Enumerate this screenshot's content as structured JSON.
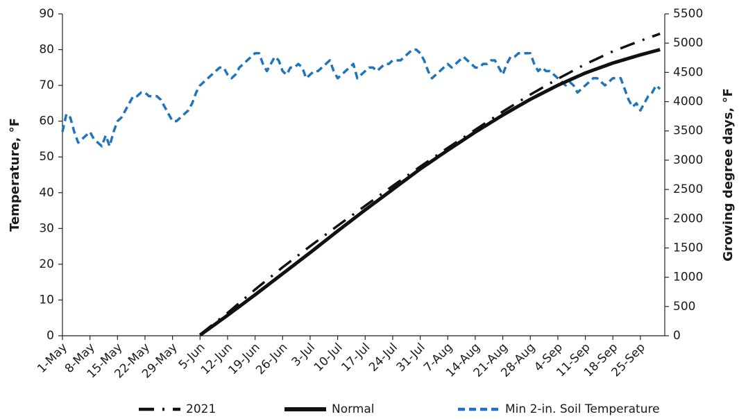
{
  "chart_data": {
    "type": "line",
    "y_label": "Temperature, °F",
    "y2_label": "Growing degree days, °F",
    "categories": [
      "1-May",
      null,
      null,
      null,
      null,
      null,
      null,
      "8-May",
      null,
      null,
      null,
      null,
      null,
      null,
      "15-May",
      null,
      null,
      null,
      null,
      null,
      null,
      "22-May",
      null,
      null,
      null,
      null,
      null,
      null,
      "29-May",
      null,
      null,
      null,
      null,
      null,
      null,
      "5-Jun",
      null,
      null,
      null,
      null,
      null,
      null,
      "12-Jun",
      null,
      null,
      null,
      null,
      null,
      null,
      "19-Jun",
      null,
      null,
      null,
      null,
      null,
      null,
      "26-Jun",
      null,
      null,
      null,
      null,
      null,
      null,
      "3-Jul",
      null,
      null,
      null,
      null,
      null,
      null,
      "10-Jul",
      null,
      null,
      null,
      null,
      null,
      null,
      "17-Jul",
      null,
      null,
      null,
      null,
      null,
      null,
      "24-Jul",
      null,
      null,
      null,
      null,
      null,
      null,
      "31-Jul",
      null,
      null,
      null,
      null,
      null,
      null,
      "7-Aug",
      null,
      null,
      null,
      null,
      null,
      null,
      "14-Aug",
      null,
      null,
      null,
      null,
      null,
      null,
      "21-Aug",
      null,
      null,
      null,
      null,
      null,
      null,
      "28-Aug",
      null,
      null,
      null,
      null,
      null,
      null,
      "4-Sep",
      null,
      null,
      null,
      null,
      null,
      null,
      "11-Sep",
      null,
      null,
      null,
      null,
      null,
      null,
      "18-Sep",
      null,
      null,
      null,
      null,
      null,
      null,
      "25-Sep",
      null,
      null,
      null,
      null,
      null
    ],
    "series": [
      {
        "name": "2021",
        "color": "#111111",
        "axis": "y2",
        "dash": "dash-dot",
        "width": 3.5,
        "values": [
          null,
          null,
          null,
          null,
          null,
          null,
          null,
          null,
          null,
          null,
          null,
          null,
          null,
          null,
          null,
          null,
          null,
          null,
          null,
          null,
          null,
          null,
          null,
          null,
          null,
          null,
          null,
          null,
          null,
          null,
          null,
          null,
          null,
          null,
          null,
          20,
          73,
          126,
          179,
          232,
          285,
          338,
          390,
          447,
          504,
          561,
          618,
          675,
          732,
          790,
          844,
          898,
          953,
          1007,
          1061,
          1115,
          1170,
          1221,
          1273,
          1324,
          1376,
          1427,
          1479,
          1530,
          1580,
          1630,
          1680,
          1730,
          1780,
          1830,
          1880,
          1929,
          1977,
          2026,
          2074,
          2123,
          2171,
          2220,
          2269,
          2317,
          2366,
          2414,
          2463,
          2511,
          2560,
          2607,
          2654,
          2701,
          2749,
          2796,
          2843,
          2890,
          2936,
          2981,
          3027,
          3073,
          3119,
          3164,
          3210,
          3254,
          3299,
          3343,
          3387,
          3431,
          3476,
          3520,
          3564,
          3609,
          3653,
          3697,
          3741,
          3786,
          3830,
          3871,
          3913,
          3954,
          3996,
          4037,
          4079,
          4120,
          4159,
          4197,
          4236,
          4274,
          4313,
          4351,
          4390,
          4426,
          4461,
          4497,
          4533,
          4569,
          4604,
          4640,
          4671,
          4703,
          4734,
          4766,
          4797,
          4829,
          4860,
          4886,
          4911,
          4937,
          4963,
          4989,
          5014,
          5040,
          5064,
          5088,
          5112,
          5136,
          5160
        ]
      },
      {
        "name": "Normal",
        "color": "#111111",
        "axis": "y2",
        "dash": "solid",
        "width": 5,
        "values": [
          null,
          null,
          null,
          null,
          null,
          null,
          null,
          null,
          null,
          null,
          null,
          null,
          null,
          null,
          null,
          null,
          null,
          null,
          null,
          null,
          null,
          null,
          null,
          null,
          null,
          null,
          null,
          null,
          null,
          null,
          null,
          null,
          null,
          null,
          null,
          10,
          59,
          107,
          156,
          204,
          253,
          301,
          350,
          400,
          450,
          500,
          550,
          600,
          650,
          700,
          751,
          803,
          854,
          906,
          957,
          1009,
          1060,
          1111,
          1163,
          1214,
          1266,
          1317,
          1369,
          1420,
          1473,
          1526,
          1579,
          1631,
          1684,
          1737,
          1790,
          1841,
          1893,
          1944,
          1996,
          2047,
          2099,
          2150,
          2200,
          2250,
          2300,
          2350,
          2400,
          2450,
          2500,
          2550,
          2600,
          2650,
          2700,
          2750,
          2800,
          2850,
          2896,
          2941,
          2987,
          3033,
          3079,
          3124,
          3170,
          3214,
          3259,
          3303,
          3347,
          3391,
          3436,
          3480,
          3521,
          3563,
          3604,
          3646,
          3687,
          3729,
          3770,
          3809,
          3847,
          3886,
          3924,
          3963,
          4001,
          4040,
          4074,
          4109,
          4143,
          4177,
          4211,
          4246,
          4280,
          4310,
          4340,
          4370,
          4400,
          4430,
          4460,
          4490,
          4514,
          4539,
          4563,
          4587,
          4611,
          4636,
          4660,
          4680,
          4700,
          4720,
          4740,
          4760,
          4780,
          4800,
          4818,
          4836,
          4854,
          4872,
          4890
        ]
      },
      {
        "name": "Min 2-in. Soil Temperature",
        "color": "#1f74bb",
        "axis": "y",
        "dash": "dash",
        "width": 3.5,
        "values": [
          57,
          62,
          61,
          57,
          54,
          55,
          56,
          57,
          55,
          54,
          53,
          56,
          53,
          57,
          60,
          61,
          63,
          65,
          67,
          67,
          68,
          68,
          67,
          67,
          67,
          66,
          64,
          62,
          60,
          60,
          61,
          62,
          63,
          65,
          68,
          70,
          71,
          72,
          73,
          74,
          75,
          75,
          73,
          72,
          73,
          75,
          76,
          77,
          78,
          79,
          79,
          76,
          74,
          76,
          78,
          77,
          74,
          73,
          75,
          75,
          76,
          75,
          72,
          73,
          74,
          74,
          75,
          76,
          77,
          74,
          72,
          73,
          74,
          75,
          76,
          72,
          73,
          74,
          75,
          75,
          74,
          75,
          76,
          76,
          77,
          77,
          77,
          78,
          79,
          80,
          80,
          79,
          77,
          74,
          72,
          73,
          74,
          75,
          76,
          75,
          76,
          77,
          78,
          77,
          76,
          75,
          75,
          76,
          76,
          77,
          77,
          75,
          73,
          76,
          78,
          78,
          79,
          79,
          79,
          79,
          76,
          74,
          75,
          74,
          74,
          73,
          72,
          71,
          70,
          71,
          70,
          68,
          69,
          70,
          71,
          72,
          72,
          71,
          70,
          71,
          72,
          72,
          72,
          69,
          66,
          64,
          65,
          63,
          65,
          67,
          68,
          70,
          69
        ]
      }
    ],
    "ylim": [
      0,
      90
    ],
    "yticks": [
      0,
      10,
      20,
      30,
      40,
      50,
      60,
      70,
      80,
      90
    ],
    "y2lim": [
      0,
      5500
    ],
    "y2ticks": [
      0,
      500,
      1000,
      1500,
      2000,
      2500,
      3000,
      3500,
      4000,
      4500,
      5000,
      5500
    ],
    "grid": false,
    "legend": "bottom"
  }
}
